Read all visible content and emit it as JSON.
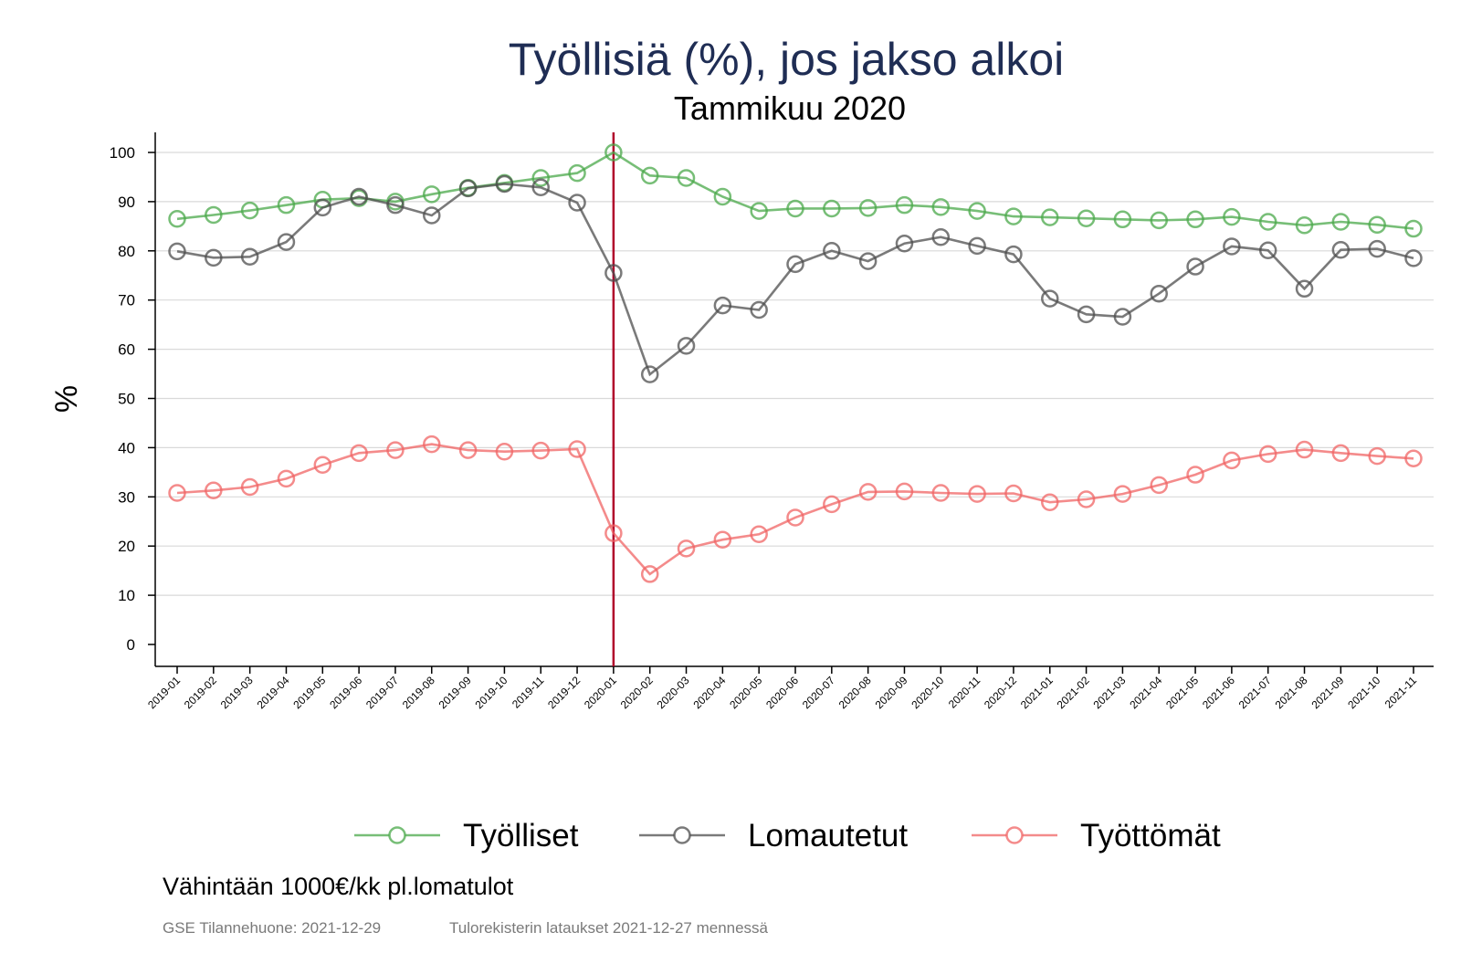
{
  "chart_data": {
    "type": "line",
    "title": "Työllisiä (%), jos jakso alkoi",
    "subtitle": "Tammikuu 2020",
    "ylabel": "%",
    "xlabel": "",
    "ylim": [
      0,
      100
    ],
    "yticks": [
      0,
      10,
      20,
      30,
      40,
      50,
      60,
      70,
      80,
      90,
      100
    ],
    "grid": true,
    "legend_position": "bottom",
    "reference_line": {
      "x": "2020-01",
      "color": "#b0002a"
    },
    "categories": [
      "2019-01",
      "2019-02",
      "2019-03",
      "2019-04",
      "2019-05",
      "2019-06",
      "2019-07",
      "2019-08",
      "2019-09",
      "2019-10",
      "2019-11",
      "2019-12",
      "2020-01",
      "2020-02",
      "2020-03",
      "2020-04",
      "2020-05",
      "2020-06",
      "2020-07",
      "2020-08",
      "2020-09",
      "2020-10",
      "2020-11",
      "2020-12",
      "2021-01",
      "2021-02",
      "2021-03",
      "2021-04",
      "2021-05",
      "2021-06",
      "2021-07",
      "2021-08",
      "2021-09",
      "2021-10",
      "2021-11"
    ],
    "series": [
      {
        "name": "Työlliset",
        "color": "#4aa84a",
        "values": [
          86.5,
          87.3,
          88.2,
          89.3,
          90.4,
          90.7,
          90.0,
          91.5,
          92.8,
          93.8,
          94.8,
          95.8,
          100,
          95.3,
          94.8,
          91.0,
          88.1,
          88.6,
          88.6,
          88.7,
          89.3,
          88.9,
          88.1,
          87.0,
          86.8,
          86.6,
          86.4,
          86.2,
          86.4,
          86.9,
          85.9,
          85.2,
          85.9,
          85.3,
          84.5
        ]
      },
      {
        "name": "Lomautetut",
        "color": "#4d4d4d",
        "values": [
          79.9,
          78.6,
          78.8,
          81.8,
          88.8,
          91.0,
          89.3,
          87.2,
          92.7,
          93.6,
          92.9,
          89.8,
          75.5,
          54.9,
          60.7,
          68.9,
          68.0,
          77.3,
          80.0,
          77.9,
          81.5,
          82.8,
          81.0,
          79.3,
          70.3,
          67.1,
          66.6,
          71.3,
          76.8,
          80.9,
          80.1,
          72.3,
          80.2,
          80.4,
          78.5
        ]
      },
      {
        "name": "Työttömät",
        "color": "#f06464",
        "values": [
          30.8,
          31.3,
          32.0,
          33.7,
          36.5,
          38.9,
          39.5,
          40.7,
          39.5,
          39.2,
          39.4,
          39.7,
          22.6,
          14.3,
          19.5,
          21.3,
          22.4,
          25.8,
          28.5,
          31.0,
          31.1,
          30.8,
          30.6,
          30.7,
          28.9,
          29.5,
          30.6,
          32.4,
          34.5,
          37.4,
          38.7,
          39.6,
          38.9,
          38.3,
          37.8
        ]
      }
    ]
  },
  "notes": {
    "criterion": "Vähintään 1000€/kk pl.lomatulot",
    "source": "GSE Tilannehuone: 2021-12-29",
    "data_cutoff": "Tulorekisterin lataukset 2021-12-27 mennessä"
  }
}
